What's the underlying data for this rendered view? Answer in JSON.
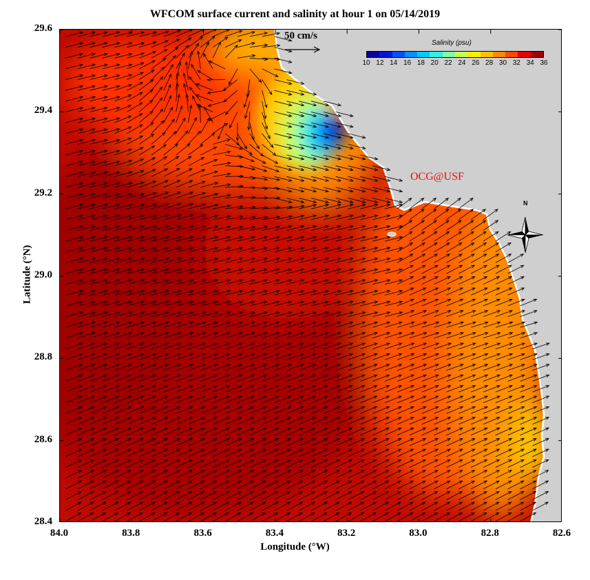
{
  "map": {
    "title": "WFCOM surface current and salinity at hour 1 on 05/14/2019",
    "xlabel": "Longitude (°W)",
    "ylabel": "Latitude (°N)",
    "x_ticks": [
      "84.0",
      "83.8",
      "83.6",
      "83.4",
      "83.2",
      "83.0",
      "82.8",
      "82.6"
    ],
    "y_ticks": [
      "29.6",
      "29.4",
      "29.2",
      "29.0",
      "28.8",
      "28.6",
      "28.4"
    ],
    "lon_range": [
      84.0,
      82.6
    ],
    "lat_range": [
      28.4,
      29.6
    ],
    "reference_vector_label": "50 cm/s",
    "colorbar": {
      "title": "Salinity (psu)",
      "labels": [
        "10",
        "12",
        "14",
        "16",
        "18",
        "20",
        "22",
        "24",
        "26",
        "28",
        "30",
        "32",
        "34",
        "36"
      ],
      "colors": [
        "#0a00a0",
        "#0016d8",
        "#0050ff",
        "#0090ff",
        "#00c8ff",
        "#30f0e0",
        "#80ffa0",
        "#c8ff50",
        "#f8f000",
        "#ffc000",
        "#ff8800",
        "#ff4800",
        "#e80000",
        "#a00000"
      ]
    },
    "credit": "OCG@USF",
    "north_label": "N",
    "colors": {
      "land": "#cfcfcf",
      "high_salinity": "#b00000",
      "mid_salinity": "#ff4000",
      "coastal_orange": "#ffa000",
      "low_salinity": "#0010c0",
      "arrow": "#000000"
    }
  }
}
